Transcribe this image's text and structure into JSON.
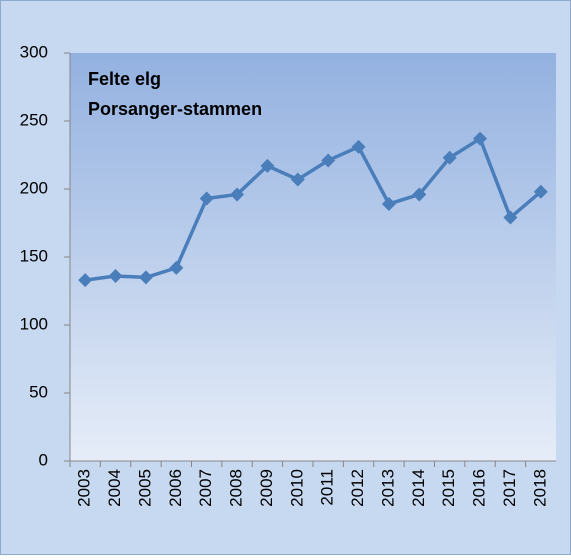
{
  "chart_data": {
    "type": "line",
    "title": "Felte elg",
    "subtitle": "Porsanger-stammen",
    "categories": [
      "2003",
      "2004",
      "2005",
      "2006",
      "2007",
      "2008",
      "2009",
      "2010",
      "2011",
      "2012",
      "2013",
      "2014",
      "2015",
      "2016",
      "2017",
      "2018"
    ],
    "series": [
      {
        "color": "#4a7ebb",
        "values": [
          133,
          136,
          135,
          142,
          193,
          196,
          217,
          207,
          221,
          231,
          189,
          196,
          223,
          237,
          179,
          198
        ]
      }
    ],
    "ylim": [
      0,
      300
    ],
    "yticks": [
      0,
      50,
      100,
      150,
      200,
      250,
      300
    ]
  }
}
